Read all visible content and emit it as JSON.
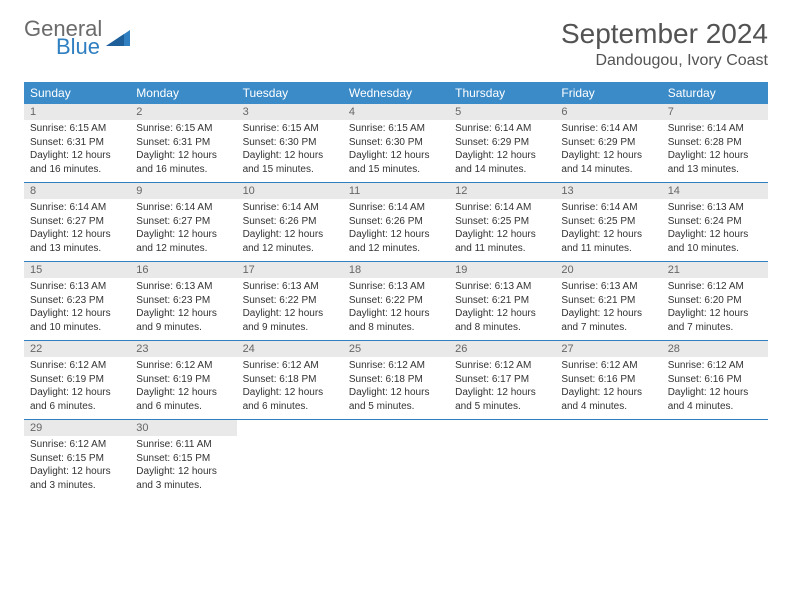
{
  "brand": {
    "word1": "General",
    "word2": "Blue"
  },
  "title": "September 2024",
  "location": "Dandougou, Ivory Coast",
  "colors": {
    "header_bg": "#3b8bc8",
    "header_text": "#ffffff",
    "daynum_bg": "#e9e9e9",
    "rule": "#2f7fc1",
    "text": "#333333",
    "title_text": "#535353",
    "logo_gray": "#6b6b6b",
    "logo_blue": "#2f7fc1"
  },
  "day_names": [
    "Sunday",
    "Monday",
    "Tuesday",
    "Wednesday",
    "Thursday",
    "Friday",
    "Saturday"
  ],
  "weeks": [
    [
      {
        "n": "1",
        "sunrise": "6:15 AM",
        "sunset": "6:31 PM",
        "daylight": "12 hours and 16 minutes."
      },
      {
        "n": "2",
        "sunrise": "6:15 AM",
        "sunset": "6:31 PM",
        "daylight": "12 hours and 16 minutes."
      },
      {
        "n": "3",
        "sunrise": "6:15 AM",
        "sunset": "6:30 PM",
        "daylight": "12 hours and 15 minutes."
      },
      {
        "n": "4",
        "sunrise": "6:15 AM",
        "sunset": "6:30 PM",
        "daylight": "12 hours and 15 minutes."
      },
      {
        "n": "5",
        "sunrise": "6:14 AM",
        "sunset": "6:29 PM",
        "daylight": "12 hours and 14 minutes."
      },
      {
        "n": "6",
        "sunrise": "6:14 AM",
        "sunset": "6:29 PM",
        "daylight": "12 hours and 14 minutes."
      },
      {
        "n": "7",
        "sunrise": "6:14 AM",
        "sunset": "6:28 PM",
        "daylight": "12 hours and 13 minutes."
      }
    ],
    [
      {
        "n": "8",
        "sunrise": "6:14 AM",
        "sunset": "6:27 PM",
        "daylight": "12 hours and 13 minutes."
      },
      {
        "n": "9",
        "sunrise": "6:14 AM",
        "sunset": "6:27 PM",
        "daylight": "12 hours and 12 minutes."
      },
      {
        "n": "10",
        "sunrise": "6:14 AM",
        "sunset": "6:26 PM",
        "daylight": "12 hours and 12 minutes."
      },
      {
        "n": "11",
        "sunrise": "6:14 AM",
        "sunset": "6:26 PM",
        "daylight": "12 hours and 12 minutes."
      },
      {
        "n": "12",
        "sunrise": "6:14 AM",
        "sunset": "6:25 PM",
        "daylight": "12 hours and 11 minutes."
      },
      {
        "n": "13",
        "sunrise": "6:14 AM",
        "sunset": "6:25 PM",
        "daylight": "12 hours and 11 minutes."
      },
      {
        "n": "14",
        "sunrise": "6:13 AM",
        "sunset": "6:24 PM",
        "daylight": "12 hours and 10 minutes."
      }
    ],
    [
      {
        "n": "15",
        "sunrise": "6:13 AM",
        "sunset": "6:23 PM",
        "daylight": "12 hours and 10 minutes."
      },
      {
        "n": "16",
        "sunrise": "6:13 AM",
        "sunset": "6:23 PM",
        "daylight": "12 hours and 9 minutes."
      },
      {
        "n": "17",
        "sunrise": "6:13 AM",
        "sunset": "6:22 PM",
        "daylight": "12 hours and 9 minutes."
      },
      {
        "n": "18",
        "sunrise": "6:13 AM",
        "sunset": "6:22 PM",
        "daylight": "12 hours and 8 minutes."
      },
      {
        "n": "19",
        "sunrise": "6:13 AM",
        "sunset": "6:21 PM",
        "daylight": "12 hours and 8 minutes."
      },
      {
        "n": "20",
        "sunrise": "6:13 AM",
        "sunset": "6:21 PM",
        "daylight": "12 hours and 7 minutes."
      },
      {
        "n": "21",
        "sunrise": "6:12 AM",
        "sunset": "6:20 PM",
        "daylight": "12 hours and 7 minutes."
      }
    ],
    [
      {
        "n": "22",
        "sunrise": "6:12 AM",
        "sunset": "6:19 PM",
        "daylight": "12 hours and 6 minutes."
      },
      {
        "n": "23",
        "sunrise": "6:12 AM",
        "sunset": "6:19 PM",
        "daylight": "12 hours and 6 minutes."
      },
      {
        "n": "24",
        "sunrise": "6:12 AM",
        "sunset": "6:18 PM",
        "daylight": "12 hours and 6 minutes."
      },
      {
        "n": "25",
        "sunrise": "6:12 AM",
        "sunset": "6:18 PM",
        "daylight": "12 hours and 5 minutes."
      },
      {
        "n": "26",
        "sunrise": "6:12 AM",
        "sunset": "6:17 PM",
        "daylight": "12 hours and 5 minutes."
      },
      {
        "n": "27",
        "sunrise": "6:12 AM",
        "sunset": "6:16 PM",
        "daylight": "12 hours and 4 minutes."
      },
      {
        "n": "28",
        "sunrise": "6:12 AM",
        "sunset": "6:16 PM",
        "daylight": "12 hours and 4 minutes."
      }
    ],
    [
      {
        "n": "29",
        "sunrise": "6:12 AM",
        "sunset": "6:15 PM",
        "daylight": "12 hours and 3 minutes."
      },
      {
        "n": "30",
        "sunrise": "6:11 AM",
        "sunset": "6:15 PM",
        "daylight": "12 hours and 3 minutes."
      },
      null,
      null,
      null,
      null,
      null
    ]
  ],
  "labels": {
    "sunrise": "Sunrise:",
    "sunset": "Sunset:",
    "daylight": "Daylight:"
  }
}
